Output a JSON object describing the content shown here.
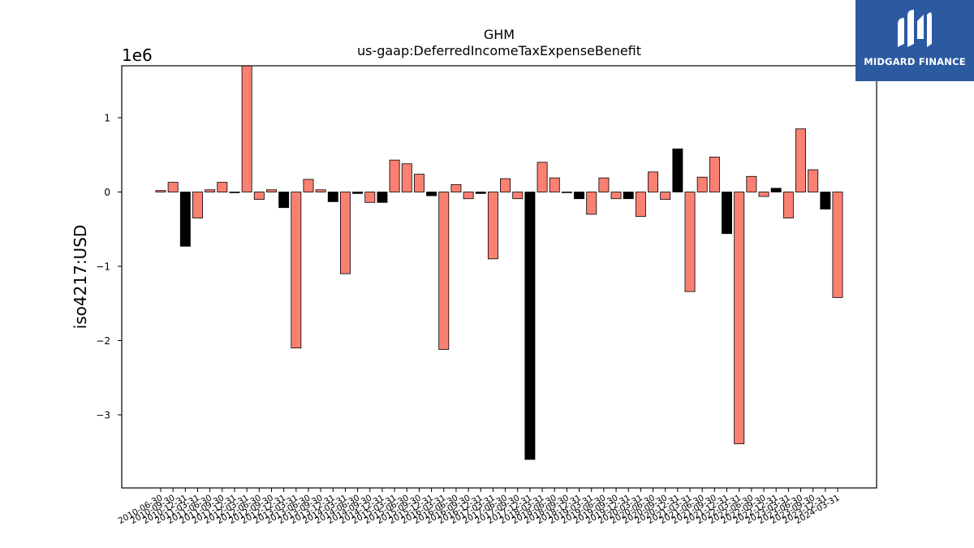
{
  "brand": {
    "name": "MIDGARD FINANCE",
    "color": "#2c5aa0",
    "icon": "midgard-logo-icon"
  },
  "chart_data": {
    "type": "bar",
    "title": "GHM",
    "subtitle": "us-gaap:DeferredIncomeTaxExpenseBenefit",
    "ylabel": "iso4217:USD",
    "xlabel": "",
    "y_scale_label": "1e6",
    "ylim": [
      -4.0,
      1.7
    ],
    "yticks": [
      -3,
      -2,
      -1,
      0,
      1
    ],
    "ytick_labels": [
      "−3",
      "−2",
      "−1",
      "0",
      "1"
    ],
    "grid": false,
    "colors": {
      "positive": "#fa8072",
      "negative": "#000000",
      "edge": "#000000"
    },
    "categories": [
      "2010-06-30",
      "2010-09-30",
      "2010-12-31",
      "2011-03-31",
      "2011-06-30",
      "2011-09-30",
      "2011-12-31",
      "2012-03-31",
      "2012-06-30",
      "2012-09-30",
      "2012-12-31",
      "2013-03-31",
      "2013-06-30",
      "2013-09-30",
      "2013-12-31",
      "2014-03-31",
      "2014-06-30",
      "2014-09-30",
      "2014-12-31",
      "2015-03-31",
      "2015-06-30",
      "2015-09-30",
      "2015-12-31",
      "2016-03-31",
      "2016-06-30",
      "2016-09-30",
      "2016-12-31",
      "2017-03-31",
      "2017-06-30",
      "2017-09-30",
      "2017-12-31",
      "2018-03-31",
      "2018-06-30",
      "2018-09-30",
      "2018-12-31",
      "2019-03-31",
      "2019-06-30",
      "2019-09-30",
      "2019-12-31",
      "2020-03-31",
      "2020-06-30",
      "2020-09-30",
      "2020-12-31",
      "2021-03-31",
      "2021-06-30",
      "2021-09-30",
      "2021-12-31",
      "2022-03-31",
      "2022-06-30",
      "2022-09-30",
      "2022-12-31",
      "2023-03-31",
      "2023-06-30",
      "2023-09-30",
      "2023-12-31",
      "2024-03-31"
    ],
    "values": [
      0.02,
      0.13,
      -0.73,
      -0.35,
      0.03,
      0.13,
      -0.01,
      1.7,
      -0.1,
      0.03,
      -0.21,
      -2.1,
      0.17,
      0.03,
      -0.13,
      -1.1,
      -0.02,
      -0.14,
      -0.14,
      0.43,
      0.38,
      0.24,
      -0.05,
      -2.12,
      0.1,
      -0.09,
      -0.02,
      -0.9,
      0.18,
      -0.09,
      -3.6,
      0.4,
      0.19,
      0.0,
      -0.09,
      -0.3,
      0.19,
      -0.09,
      -0.09,
      -0.33,
      0.27,
      -0.1,
      0.58,
      -1.34,
      0.2,
      0.47,
      -0.56,
      -3.39,
      0.21,
      -0.06,
      0.05,
      -0.35,
      0.85,
      0.3,
      -0.23,
      -1.42
    ],
    "bar_colors": [
      "salmon",
      "salmon",
      "black",
      "salmon",
      "salmon",
      "salmon",
      "black",
      "salmon",
      "salmon",
      "salmon",
      "black",
      "salmon",
      "salmon",
      "salmon",
      "black",
      "salmon",
      "black",
      "salmon",
      "black",
      "salmon",
      "salmon",
      "salmon",
      "black",
      "salmon",
      "salmon",
      "salmon",
      "black",
      "salmon",
      "salmon",
      "salmon",
      "black",
      "salmon",
      "salmon",
      "black",
      "black",
      "salmon",
      "salmon",
      "salmon",
      "black",
      "salmon",
      "salmon",
      "salmon",
      "black",
      "salmon",
      "salmon",
      "salmon",
      "black",
      "salmon",
      "salmon",
      "salmon",
      "black",
      "salmon",
      "salmon",
      "salmon",
      "black",
      "salmon"
    ]
  }
}
